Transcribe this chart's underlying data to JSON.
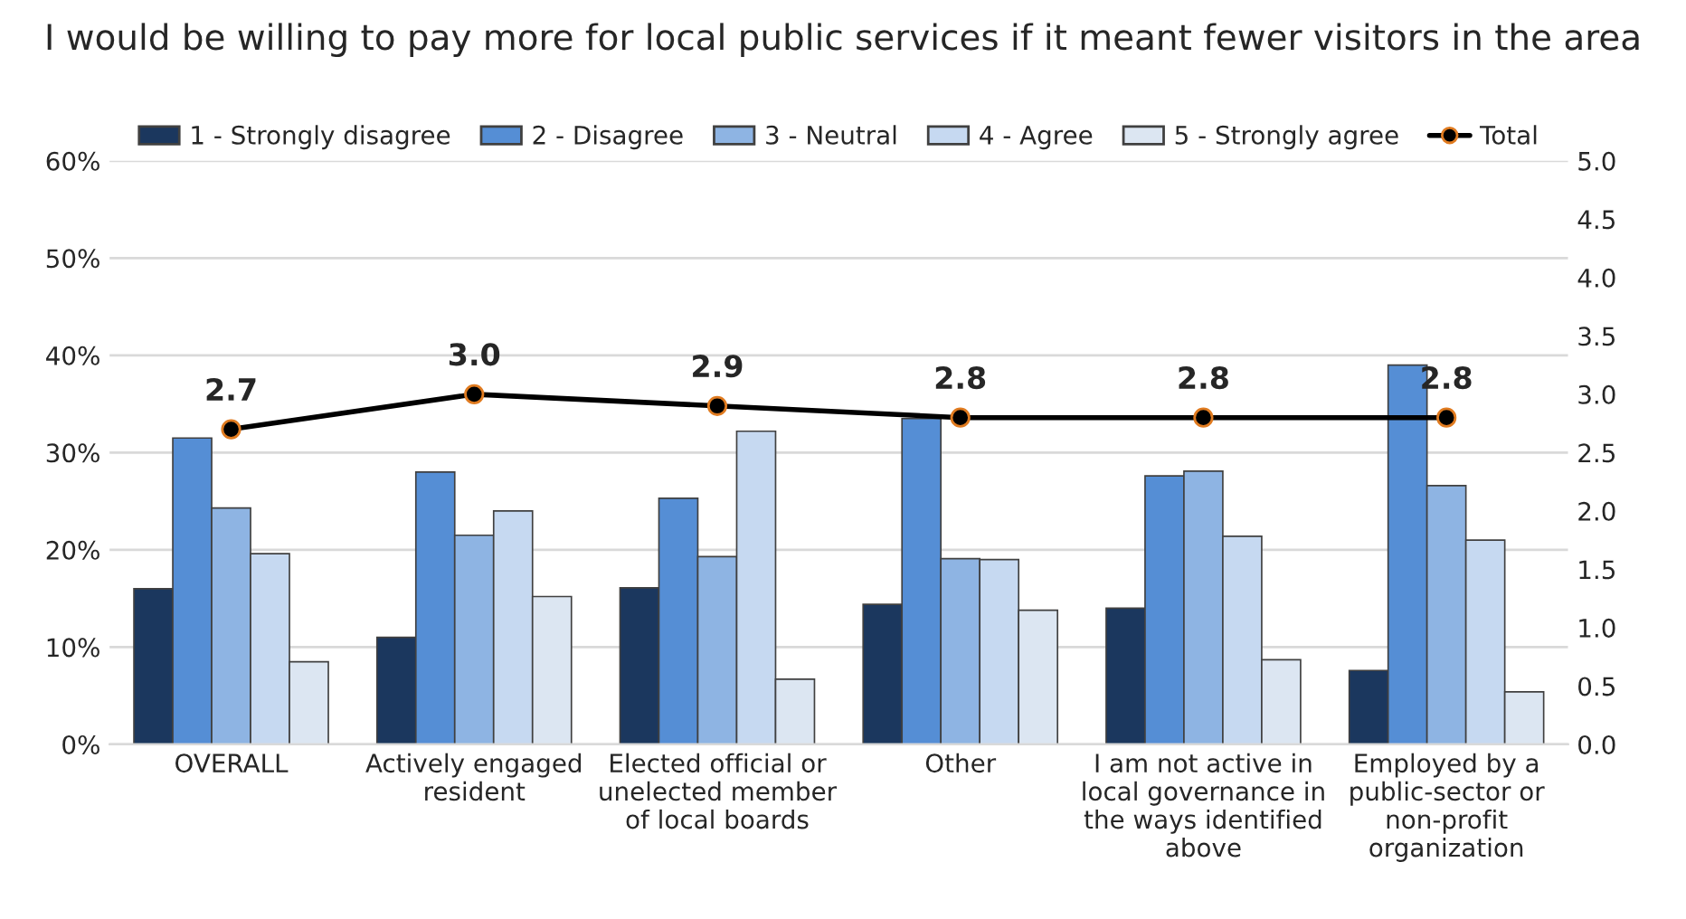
{
  "chart_data": {
    "type": "bar",
    "title": "I would be willing to pay more for local public services if it meant fewer visitors in the area",
    "categories": [
      "OVERALL",
      "Actively engaged\nresident",
      "Elected official or\nunelected member\nof local boards",
      "Other",
      "I am not active in\nlocal governance in\nthe ways identified\nabove",
      "Employed by a\npublic-sector or\nnon-profit\norganization"
    ],
    "series": [
      {
        "name": "1 - Strongly disagree",
        "color": "#1b375e",
        "values": [
          16,
          11,
          16.1,
          14.4,
          14,
          7.6
        ]
      },
      {
        "name": "2 - Disagree",
        "color": "#558ed5",
        "values": [
          31.5,
          28,
          25.3,
          33.5,
          27.6,
          39
        ]
      },
      {
        "name": "3 - Neutral",
        "color": "#8eb4e3",
        "values": [
          24.3,
          21.5,
          19.3,
          19.1,
          28.1,
          26.6
        ]
      },
      {
        "name": "4 - Agree",
        "color": "#c6d9f1",
        "values": [
          19.6,
          24,
          32.2,
          19,
          21.4,
          21
        ]
      },
      {
        "name": "5 - Strongly agree",
        "color": "#dce6f2",
        "values": [
          8.5,
          15.2,
          6.7,
          13.8,
          8.7,
          5.4
        ]
      },
      {
        "name": "Total",
        "type": "line",
        "axis": "y2",
        "color": "#000000",
        "marker": "circle",
        "values": [
          2.7,
          3.0,
          2.9,
          2.8,
          2.8,
          2.8
        ],
        "value_labels": [
          "2.7",
          "3.0",
          "2.9",
          "2.8",
          "2.8",
          "2.8"
        ]
      }
    ],
    "ylim": [
      0,
      60
    ],
    "yticks": [
      {
        "value": 0,
        "label": "0%"
      },
      {
        "value": 10,
        "label": "10%"
      },
      {
        "value": 20,
        "label": "20%"
      },
      {
        "value": 30,
        "label": "30%"
      },
      {
        "value": 40,
        "label": "40%"
      },
      {
        "value": 50,
        "label": "50%"
      },
      {
        "value": 60,
        "label": "60%"
      }
    ],
    "y2lim": [
      0,
      5
    ],
    "y2ticks": [
      {
        "value": 0,
        "label": "0.0"
      },
      {
        "value": 0.5,
        "label": "0.5"
      },
      {
        "value": 1,
        "label": "1.0"
      },
      {
        "value": 1.5,
        "label": "1.5"
      },
      {
        "value": 2,
        "label": "2.0"
      },
      {
        "value": 2.5,
        "label": "2.5"
      },
      {
        "value": 3,
        "label": "3.0"
      },
      {
        "value": 3.5,
        "label": "3.5"
      },
      {
        "value": 4,
        "label": "4.0"
      },
      {
        "value": 4.5,
        "label": "4.5"
      },
      {
        "value": 5,
        "label": "5.0"
      }
    ],
    "grid": "y",
    "legend": "top"
  }
}
